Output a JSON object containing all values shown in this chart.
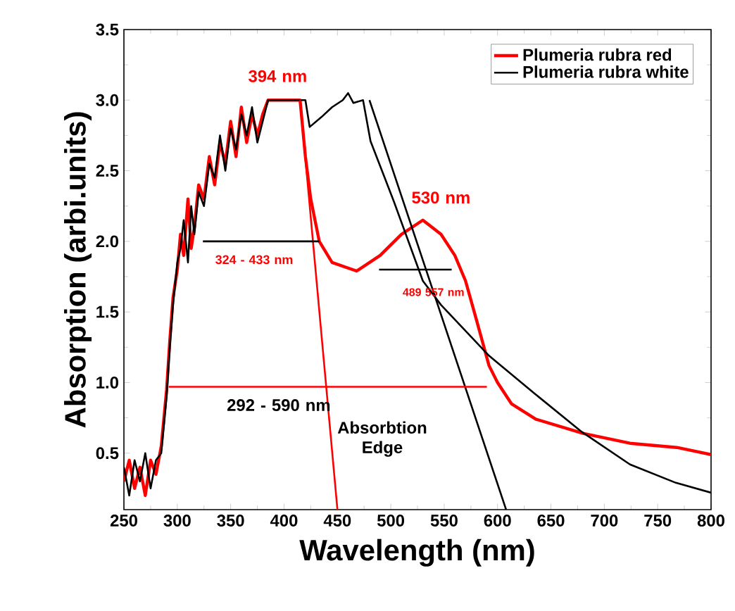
{
  "chart_data": {
    "type": "line",
    "xlabel": "Wavelength (nm)",
    "ylabel": "Absorption (arbi.units)",
    "xlim": [
      250,
      800
    ],
    "xticks": [
      250,
      300,
      350,
      400,
      450,
      500,
      550,
      600,
      650,
      700,
      750,
      800
    ],
    "ylim": [
      0.1,
      3.5
    ],
    "yticks": [
      0.5,
      {
        "value": 1.0,
        "label": "1.0"
      },
      1.5,
      {
        "value": 2.0,
        "label": "2.0"
      },
      2.5,
      {
        "value": 3.0,
        "label": "3.0"
      },
      3.5
    ],
    "legend": "top right",
    "grid": false,
    "marker": "none",
    "line_style": "solid",
    "series": [
      {
        "name": "Plumeria rubra red",
        "color": "#ff0000",
        "x": [
          250,
          255,
          260,
          265,
          270,
          275,
          280,
          285,
          290,
          293,
          296,
          300,
          303,
          306,
          310,
          313,
          316,
          320,
          325,
          330,
          335,
          340,
          345,
          350,
          355,
          360,
          365,
          370,
          375,
          380,
          385,
          400,
          415,
          420,
          425,
          433,
          445,
          468,
          490,
          510,
          530,
          547,
          560,
          570,
          580,
          592,
          600,
          613,
          636,
          680,
          724,
          768,
          800
        ],
        "values": [
          0.3,
          0.45,
          0.25,
          0.4,
          0.2,
          0.45,
          0.35,
          0.55,
          0.95,
          1.3,
          1.6,
          1.8,
          2.05,
          1.9,
          2.3,
          1.95,
          2.1,
          2.4,
          2.3,
          2.6,
          2.4,
          2.7,
          2.55,
          2.85,
          2.6,
          2.95,
          2.7,
          2.9,
          2.75,
          2.9,
          3.0,
          3.0,
          3.0,
          2.6,
          2.3,
          2.0,
          1.85,
          1.79,
          1.9,
          2.05,
          2.15,
          2.05,
          1.9,
          1.72,
          1.45,
          1.12,
          1.0,
          0.85,
          0.74,
          0.64,
          0.57,
          0.54,
          0.49
        ]
      },
      {
        "name": "Plumeria rubra white",
        "color": "#000000",
        "x": [
          250,
          255,
          260,
          265,
          270,
          275,
          280,
          285,
          290,
          293,
          296,
          300,
          303,
          306,
          310,
          313,
          316,
          320,
          325,
          330,
          335,
          340,
          345,
          350,
          355,
          360,
          365,
          370,
          375,
          380,
          385,
          400,
          420,
          424,
          435,
          445,
          455,
          460,
          465,
          474,
          481,
          503,
          530,
          547,
          592,
          635,
          679,
          724,
          767,
          800
        ],
        "values": [
          0.4,
          0.2,
          0.45,
          0.3,
          0.5,
          0.25,
          0.45,
          0.5,
          0.9,
          1.25,
          1.55,
          1.85,
          1.95,
          2.15,
          1.85,
          2.25,
          2.05,
          2.35,
          2.25,
          2.55,
          2.45,
          2.75,
          2.5,
          2.8,
          2.65,
          2.9,
          2.75,
          2.95,
          2.7,
          2.85,
          3.0,
          3.0,
          3.0,
          2.81,
          2.88,
          2.95,
          3.0,
          3.05,
          2.98,
          3.0,
          2.71,
          2.28,
          1.72,
          1.55,
          1.19,
          0.92,
          0.65,
          0.42,
          0.29,
          0.22
        ]
      },
      {
        "type": "line",
        "color": "#ff0000",
        "x": [
          415,
          450
        ],
        "values": [
          3.0,
          0.1
        ]
      },
      {
        "type": "line",
        "color": "#000000",
        "x": [
          480,
          608
        ],
        "values": [
          3.0,
          0.1
        ]
      },
      {
        "type": "line",
        "color": "#ff0000",
        "x": [
          292,
          590
        ],
        "values": [
          0.97,
          0.97
        ]
      },
      {
        "type": "line",
        "color": "#000000",
        "x": [
          324,
          433
        ],
        "values": [
          2.0,
          2.0
        ]
      },
      {
        "type": "line",
        "color": "#000000",
        "x": [
          489,
          557
        ],
        "values": [
          1.8,
          1.8
        ]
      }
    ],
    "annotations": [
      "394 nm",
      "530 nm",
      "324 - 433 nm",
      "489   557 nm",
      "292 - 590 nm",
      "Absorbtion Edge"
    ]
  }
}
